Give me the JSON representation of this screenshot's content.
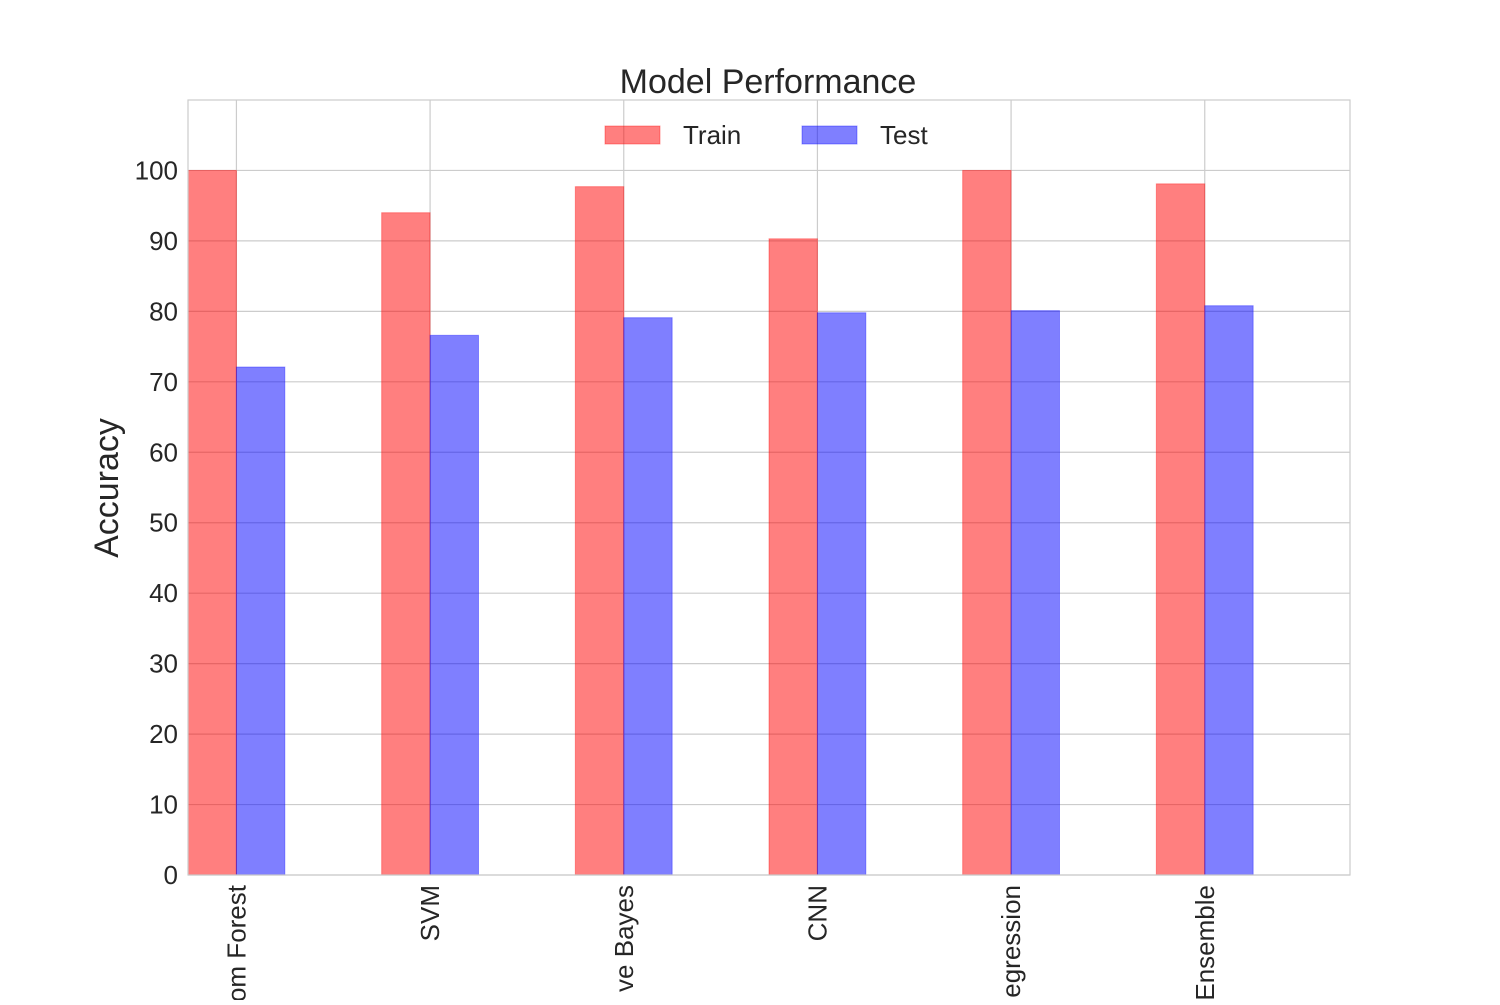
{
  "chart_data": {
    "type": "bar",
    "title": "Model Performance",
    "xlabel": "",
    "ylabel": "Accuracy",
    "categories": [
      "Random Forest",
      "SVM",
      "Naive Bayes",
      "CNN",
      "Logistic Regression",
      "Ensemble"
    ],
    "category_labels_shown": [
      "om Forest",
      "SVM",
      "ve Bayes",
      "CNN",
      "egression",
      "Ensemble"
    ],
    "series": [
      {
        "name": "Train",
        "values": [
          100.0,
          94.0,
          97.7,
          90.3,
          100.0,
          98.1
        ],
        "color": "#ff0000",
        "opacity": 0.5
      },
      {
        "name": "Test",
        "values": [
          72.1,
          76.6,
          79.1,
          79.8,
          80.1,
          80.8
        ],
        "color": "#0000ff",
        "opacity": 0.5
      }
    ],
    "ylim": [
      0,
      110
    ],
    "yticks": [
      0,
      10,
      20,
      30,
      40,
      50,
      60,
      70,
      80,
      90,
      100
    ],
    "grid": true,
    "legend": "top-center",
    "x_tick_rotation": "vertical"
  }
}
